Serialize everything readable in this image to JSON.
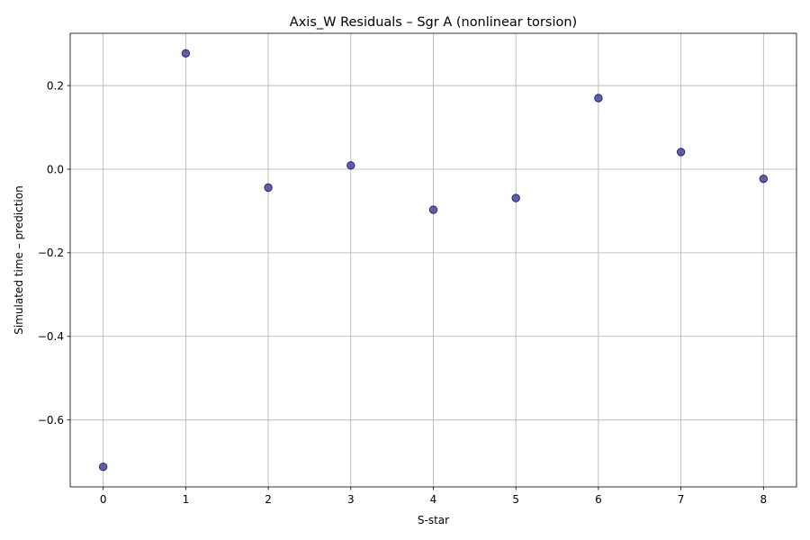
{
  "chart_data": {
    "type": "scatter",
    "title": "Axis_W Residuals – Sgr A (nonlinear torsion)",
    "xlabel": "S-star",
    "ylabel": "Simulated time – prediction",
    "x": [
      0,
      1,
      2,
      3,
      4,
      5,
      6,
      7,
      8
    ],
    "y": [
      -0.712,
      0.277,
      -0.044,
      0.009,
      -0.097,
      -0.069,
      0.17,
      0.041,
      -0.023
    ],
    "xlim": [
      -0.4,
      8.4
    ],
    "ylim": [
      -0.76,
      0.325
    ],
    "xticks": [
      0,
      1,
      2,
      3,
      4,
      5,
      6,
      7,
      8
    ],
    "xtick_labels": [
      "0",
      "1",
      "2",
      "3",
      "4",
      "5",
      "6",
      "7",
      "8"
    ],
    "yticks": [
      -0.6,
      -0.4,
      -0.2,
      0.0,
      0.2
    ],
    "ytick_labels": [
      "−0.6",
      "−0.4",
      "−0.2",
      "0.0",
      "0.2"
    ],
    "grid": true,
    "legend": false,
    "marker_color": "#1f1f8f",
    "marker_edge_color": "#111155",
    "marker_opacity": 0.7,
    "grid_color": "#b0b0b0"
  }
}
